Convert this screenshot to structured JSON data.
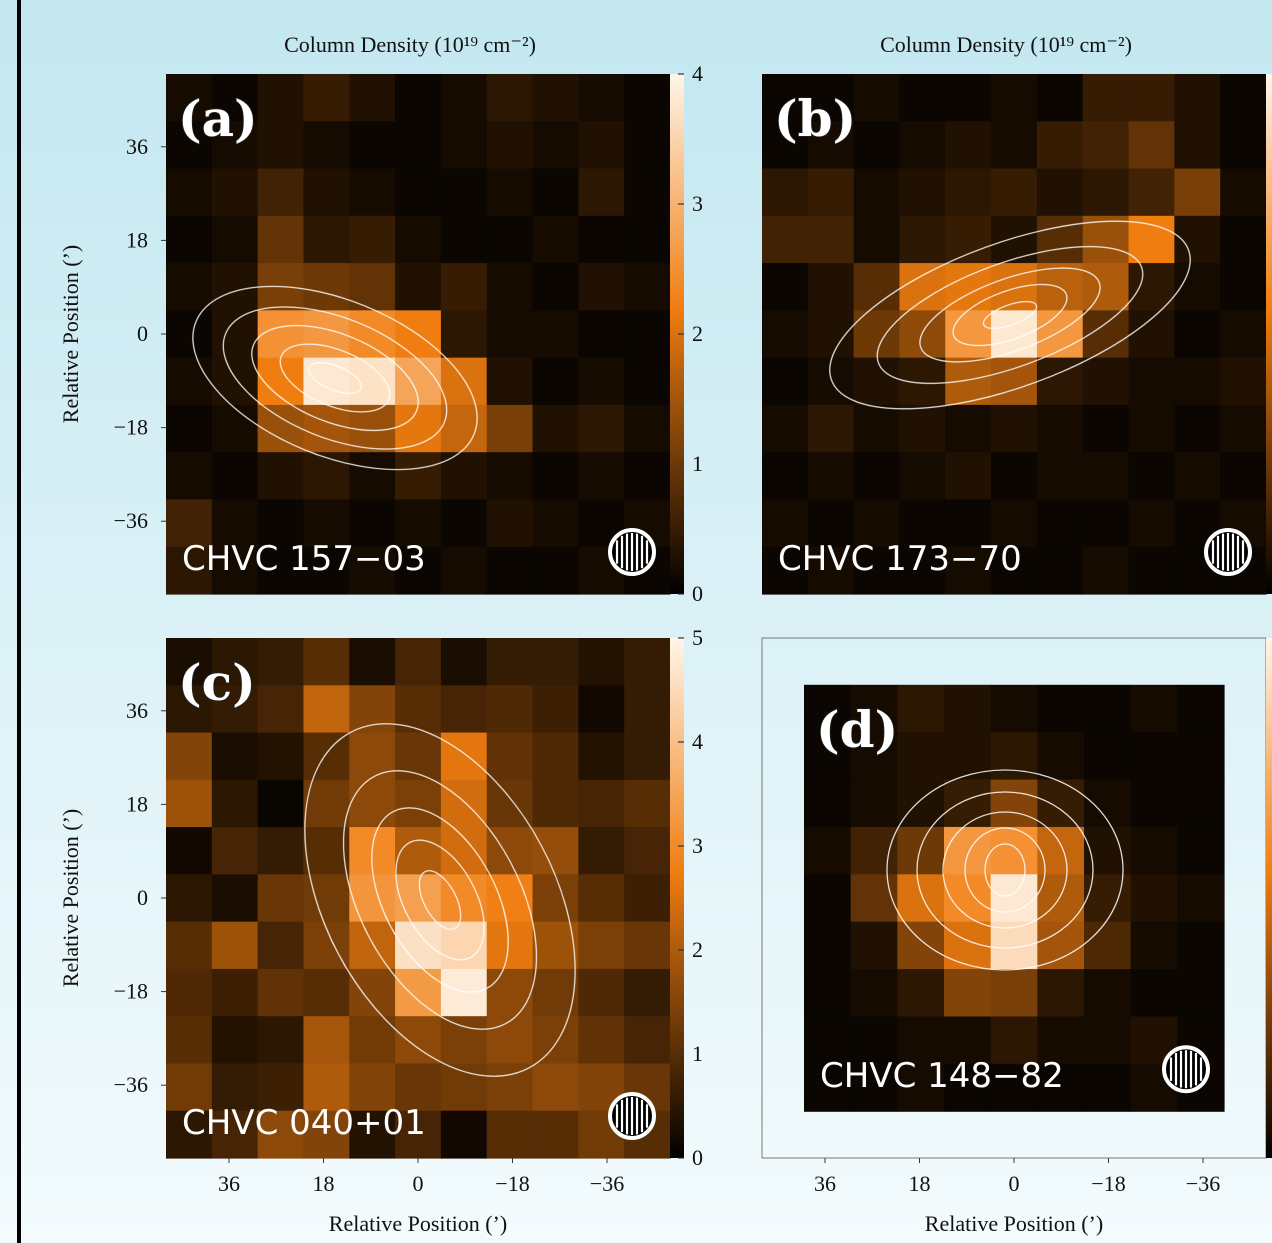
{
  "chart_data": [
    {
      "type": "heatmap",
      "panel_label": "(a)",
      "name": "CHVC 157−03",
      "cbar_label": "Column Density (10¹⁹ cm⁻²)",
      "ylabel": "Relative Position (’)",
      "colormap": [
        "#000000",
        "#f07d10",
        "#fff6ea"
      ],
      "xlim": [
        48,
        -48
      ],
      "ylim": [
        -50,
        50
      ],
      "zlim": [
        0,
        4
      ],
      "cbar_ticks": [
        0,
        1,
        2,
        3,
        4
      ],
      "yticks": [
        {
          "value": -36,
          "label": "−36"
        },
        {
          "value": -18,
          "label": "−18"
        },
        0,
        18,
        36
      ],
      "z": [
        [
          0.2,
          0.1,
          0.3,
          0.5,
          0.3,
          0.1,
          0.2,
          0.4,
          0.3,
          0.2,
          0.1
        ],
        [
          0.1,
          0.2,
          0.3,
          0.2,
          0.1,
          0.1,
          0.2,
          0.3,
          0.2,
          0.3,
          0.1
        ],
        [
          0.2,
          0.3,
          0.6,
          0.3,
          0.2,
          0.1,
          0.1,
          0.2,
          0.1,
          0.4,
          0.1
        ],
        [
          0.1,
          0.2,
          0.9,
          0.4,
          0.5,
          0.2,
          0.1,
          0.1,
          0.2,
          0.1,
          0.1
        ],
        [
          0.2,
          0.3,
          1.1,
          1.0,
          0.9,
          0.3,
          0.5,
          0.2,
          0.1,
          0.3,
          0.2
        ],
        [
          0.1,
          0.3,
          2.5,
          2.6,
          2.4,
          2.2,
          0.4,
          0.2,
          0.2,
          0.1,
          0.1
        ],
        [
          0.2,
          0.3,
          2.2,
          3.8,
          3.7,
          2.8,
          2.0,
          0.3,
          0.1,
          0.2,
          0.1
        ],
        [
          0.1,
          0.2,
          1.4,
          1.5,
          1.4,
          2.1,
          1.8,
          1.1,
          0.3,
          0.4,
          0.2
        ],
        [
          0.2,
          0.1,
          0.3,
          0.4,
          0.2,
          0.5,
          0.3,
          0.2,
          0.1,
          0.2,
          0.1
        ],
        [
          0.6,
          0.2,
          0.1,
          0.2,
          0.1,
          0.2,
          0.1,
          0.3,
          0.2,
          0.1,
          0.2
        ],
        [
          0.4,
          0.2,
          0.1,
          0.1,
          0.2,
          0.1,
          0.2,
          0.1,
          0.1,
          0.2,
          0.1
        ]
      ]
    },
    {
      "type": "heatmap",
      "panel_label": "(b)",
      "name": "CHVC 173−70",
      "cbar_label": "Column Density (10¹⁹ cm⁻²)",
      "colormap": [
        "#000000",
        "#f07d10",
        "#fff6ea"
      ],
      "xlim": [
        48,
        -48
      ],
      "ylim": [
        -50,
        50
      ],
      "zlim": [
        0,
        4
      ],
      "z": [
        [
          0.1,
          0.1,
          0.2,
          0.1,
          0.1,
          0.2,
          0.1,
          0.5,
          0.5,
          0.3,
          0.1
        ],
        [
          0.1,
          0.2,
          0.1,
          0.2,
          0.3,
          0.2,
          0.5,
          0.6,
          0.9,
          0.3,
          0.1
        ],
        [
          0.4,
          0.5,
          0.2,
          0.3,
          0.4,
          0.5,
          0.3,
          0.4,
          0.6,
          1.1,
          0.2
        ],
        [
          0.6,
          0.6,
          0.2,
          0.4,
          0.5,
          0.3,
          0.8,
          1.4,
          2.2,
          0.3,
          0.1
        ],
        [
          0.1,
          0.3,
          0.8,
          2.0,
          2.1,
          2.0,
          1.7,
          1.6,
          0.4,
          0.2,
          0.1
        ],
        [
          0.2,
          0.3,
          1.0,
          1.3,
          2.6,
          3.8,
          2.6,
          0.8,
          0.3,
          0.1,
          0.2
        ],
        [
          0.1,
          0.2,
          0.3,
          0.4,
          1.6,
          1.5,
          0.4,
          0.3,
          0.2,
          0.2,
          0.3
        ],
        [
          0.2,
          0.4,
          0.2,
          0.3,
          0.2,
          0.3,
          0.2,
          0.1,
          0.2,
          0.1,
          0.2
        ],
        [
          0.1,
          0.2,
          0.1,
          0.2,
          0.3,
          0.1,
          0.2,
          0.2,
          0.1,
          0.2,
          0.1
        ],
        [
          0.2,
          0.1,
          0.2,
          0.1,
          0.1,
          0.2,
          0.1,
          0.1,
          0.2,
          0.1,
          0.2
        ],
        [
          0.1,
          0.2,
          0.1,
          0.1,
          0.2,
          0.1,
          0.1,
          0.2,
          0.1,
          0.1,
          0.1
        ]
      ]
    },
    {
      "type": "heatmap",
      "panel_label": "(c)",
      "name": "CHVC 040+01",
      "xlabel": "Relative Position (’)",
      "ylabel": "Relative Position (’)",
      "colormap": [
        "#000000",
        "#f07d10",
        "#fff6ea"
      ],
      "xlim": [
        48,
        -48
      ],
      "ylim": [
        -50,
        50
      ],
      "zlim": [
        0,
        5
      ],
      "cbar_ticks": [
        0,
        1,
        2,
        3,
        4,
        5
      ],
      "xticks": [
        36,
        18,
        0,
        {
          "value": -18,
          "label": "−18"
        },
        {
          "value": -36,
          "label": "−36"
        }
      ],
      "yticks": [
        {
          "value": -36,
          "label": "−36"
        },
        {
          "value": -18,
          "label": "−18"
        },
        0,
        18,
        36
      ],
      "z": [
        [
          0.3,
          0.5,
          0.6,
          1.0,
          0.3,
          0.8,
          0.3,
          0.6,
          0.6,
          0.4,
          0.6
        ],
        [
          0.5,
          0.6,
          0.8,
          2.2,
          1.5,
          1.0,
          0.8,
          0.9,
          0.7,
          0.2,
          0.6
        ],
        [
          1.5,
          0.3,
          0.4,
          1.0,
          1.6,
          1.2,
          2.6,
          1.1,
          0.9,
          0.4,
          0.6
        ],
        [
          1.8,
          0.5,
          0.1,
          1.3,
          1.6,
          1.4,
          2.4,
          1.2,
          0.9,
          0.8,
          1.0
        ],
        [
          0.2,
          0.8,
          0.6,
          1.0,
          3.0,
          2.0,
          2.4,
          1.6,
          1.7,
          0.6,
          0.8
        ],
        [
          0.5,
          0.3,
          1.2,
          1.3,
          3.2,
          3.4,
          3.0,
          2.8,
          1.4,
          1.0,
          0.7
        ],
        [
          1.0,
          1.8,
          0.8,
          1.4,
          2.2,
          4.6,
          4.4,
          2.6,
          1.8,
          1.4,
          1.2
        ],
        [
          0.9,
          0.7,
          1.1,
          1.0,
          1.5,
          3.3,
          4.8,
          1.6,
          1.3,
          0.9,
          0.6
        ],
        [
          1.0,
          0.4,
          0.5,
          1.9,
          1.3,
          1.6,
          1.4,
          1.6,
          1.4,
          1.1,
          0.8
        ],
        [
          1.3,
          0.6,
          0.7,
          2.0,
          1.5,
          1.2,
          1.3,
          1.4,
          1.6,
          1.5,
          1.2
        ],
        [
          0.5,
          0.8,
          1.6,
          1.5,
          0.4,
          0.8,
          0.2,
          1.0,
          1.0,
          1.3,
          1.0
        ]
      ]
    },
    {
      "type": "heatmap",
      "panel_label": "(d)",
      "name": "CHVC 148−82",
      "xlabel": "Relative Position (’)",
      "colormap": [
        "#000000",
        "#f07d10",
        "#fff6ea"
      ],
      "xlim": [
        48,
        -48
      ],
      "ylim": [
        -50,
        50
      ],
      "zlim": [
        0,
        4
      ],
      "image_extent": [
        40,
        -40,
        -41,
        41
      ],
      "xticks": [
        36,
        18,
        0,
        {
          "value": -18,
          "label": "−18"
        },
        {
          "value": -36,
          "label": "−36"
        }
      ],
      "z": [
        [
          0.1,
          0.2,
          0.4,
          0.3,
          0.2,
          0.1,
          0.1,
          0.2,
          0.1
        ],
        [
          0.1,
          0.2,
          0.3,
          0.3,
          0.4,
          0.2,
          0.1,
          0.1,
          0.1
        ],
        [
          0.1,
          0.2,
          0.3,
          0.5,
          1.2,
          0.5,
          0.2,
          0.1,
          0.1
        ],
        [
          0.2,
          0.6,
          1.0,
          2.6,
          2.5,
          1.8,
          0.3,
          0.2,
          0.1
        ],
        [
          0.1,
          0.9,
          2.0,
          2.4,
          3.8,
          1.6,
          0.5,
          0.3,
          0.2
        ],
        [
          0.1,
          0.3,
          1.2,
          2.0,
          3.6,
          1.5,
          0.7,
          0.2,
          0.1
        ],
        [
          0.1,
          0.2,
          0.4,
          1.2,
          1.1,
          0.4,
          0.2,
          0.1,
          0.1
        ],
        [
          0.1,
          0.1,
          0.2,
          0.2,
          0.4,
          0.2,
          0.2,
          0.3,
          0.1
        ],
        [
          0.1,
          0.1,
          0.2,
          0.1,
          0.1,
          0.1,
          0.1,
          0.2,
          0.1
        ]
      ]
    }
  ]
}
